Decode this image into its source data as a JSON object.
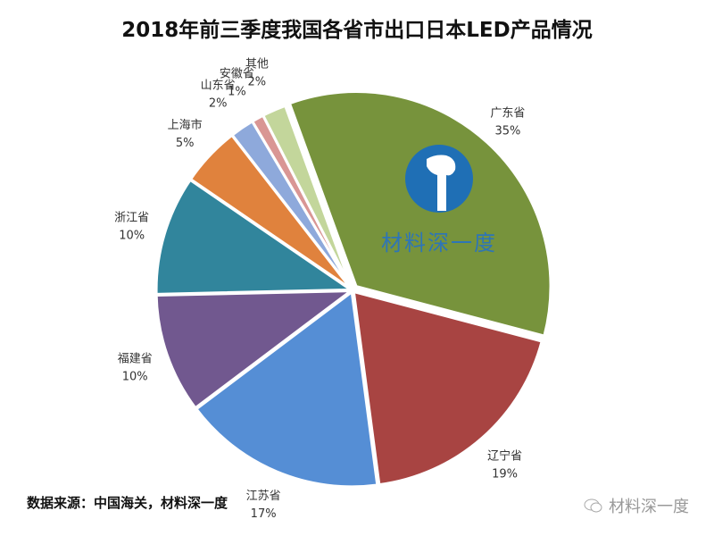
{
  "chart_data": {
    "type": "pie",
    "title": "2018年前三季度我国各省市出口日本LED产品情况",
    "slices": [
      {
        "label": "广东省",
        "value": 35,
        "display": "35%",
        "color": "#77933C"
      },
      {
        "label": "辽宁省",
        "value": 19,
        "display": "19%",
        "color": "#A84442"
      },
      {
        "label": "江苏省",
        "value": 17,
        "display": "17%",
        "color": "#558ED5"
      },
      {
        "label": "福建省",
        "value": 10,
        "display": "10%",
        "color": "#71588F"
      },
      {
        "label": "浙江省",
        "value": 10,
        "display": "10%",
        "color": "#31859C"
      },
      {
        "label": "上海市",
        "value": 5,
        "display": "5%",
        "color": "#E0823D"
      },
      {
        "label": "山东省",
        "value": 2,
        "display": "2%",
        "color": "#8EA9DB"
      },
      {
        "label": "安徽省",
        "value": 1,
        "display": "1%",
        "color": "#D99694"
      },
      {
        "label": "其他",
        "value": 2,
        "display": "2%",
        "color": "#C3D69B"
      }
    ],
    "legend": "none"
  },
  "source": "数据来源：中国海关，材料深一度",
  "logo_text": "材料深一度",
  "watermark": "材料深一度"
}
